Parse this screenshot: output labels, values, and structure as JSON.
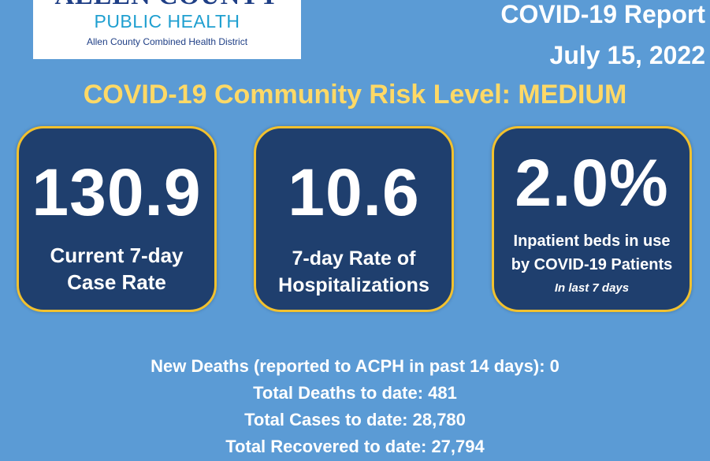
{
  "logo": {
    "name": "ALLEN COUNTY",
    "subtitle": "PUBLIC HEALTH",
    "district": "Allen County Combined Health District"
  },
  "header": {
    "title": "COVID-19 Report",
    "date": "July 15, 2022"
  },
  "risk_level": "COVID-19 Community Risk Level: MEDIUM",
  "cards": [
    {
      "value": "130.9",
      "line1": "Current 7-day",
      "line2": "Case Rate"
    },
    {
      "value": "10.6",
      "line1": "7-day Rate of",
      "line2": "Hospitalizations"
    },
    {
      "value": "2.0%",
      "line1": "Inpatient beds in use",
      "line2": "by COVID-19 Patients",
      "note": "In last  7 days"
    }
  ],
  "stats": {
    "new_deaths": "New Deaths (reported to ACPH in past 14 days): 0",
    "total_deaths": "Total Deaths to date: 481",
    "total_cases": "Total Cases to date: 28,780",
    "total_recovered": "Total Recovered to date: 27,794"
  },
  "colors": {
    "background": "#5b9bd5",
    "card": "#1f3f6e",
    "card_border": "#f2c12e",
    "risk_text": "#ffd966"
  }
}
